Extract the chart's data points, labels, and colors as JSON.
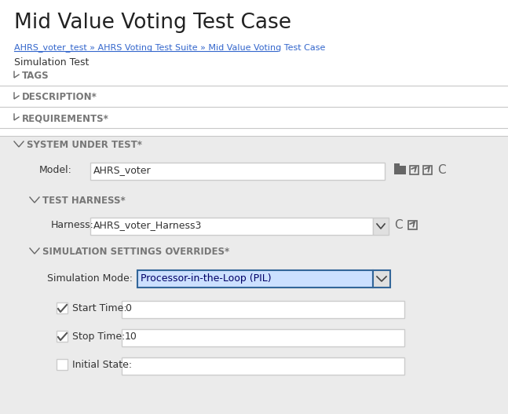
{
  "title": "Mid Value Voting Test Case",
  "breadcrumb_parts": [
    "AHRS_voter_test",
    " » ",
    "AHRS Voting Test Suite",
    " » ",
    "Mid Value Voting Test Case"
  ],
  "subtitle": "Simulation Test",
  "sections": [
    "TAGS",
    "DESCRIPTION*",
    "REQUIREMENTS*"
  ],
  "section_expanded": "SYSTEM UNDER TEST*",
  "model_label": "Model:",
  "model_value": "AHRS_voter",
  "harness_section": "TEST HARNESS*",
  "harness_label": "Harness:",
  "harness_value": "AHRS_voter_Harness3",
  "sim_section": "SIMULATION SETTINGS OVERRIDES*",
  "sim_mode_label": "Simulation Mode:",
  "sim_mode_value": "Processor-in-the-Loop (PIL)",
  "start_time_label": "Start Time:",
  "start_time_value": "0",
  "stop_time_label": "Stop Time:",
  "stop_time_value": "10",
  "initial_state_label": "Initial State:",
  "initial_state_value": "",
  "bg_color": "#ebebeb",
  "white": "#ffffff",
  "border_color": "#cccccc",
  "text_color": "#333333",
  "link_color": "#3366cc",
  "section_color": "#777777",
  "title_color": "#222222",
  "selected_fill": "#cce0ff",
  "selected_border": "#336699",
  "checkbox_checked_color": "#555555",
  "separator_color": "#c8c8c8",
  "icon_color": "#666666"
}
